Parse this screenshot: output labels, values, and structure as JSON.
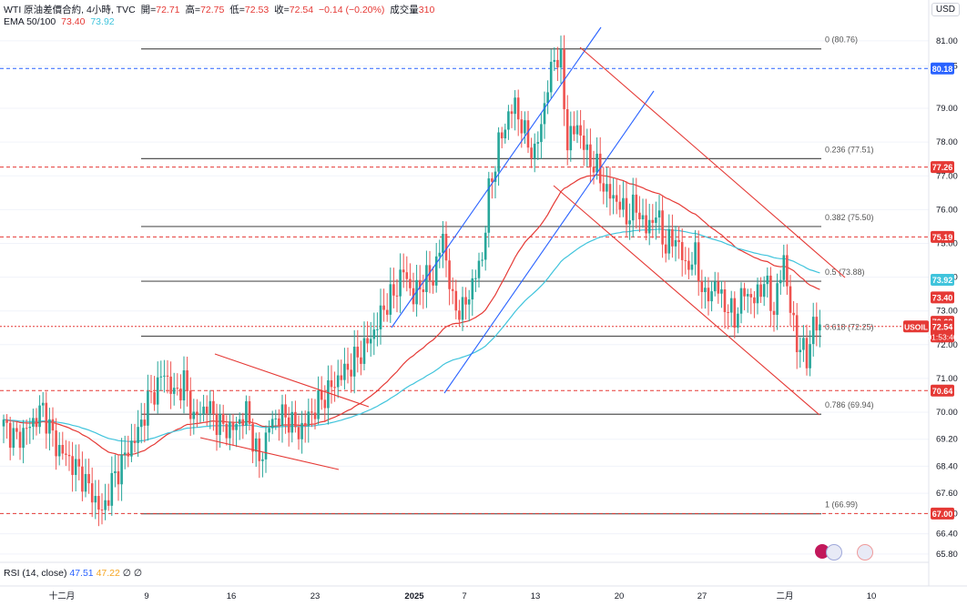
{
  "header": {
    "symbol_line": "WTI 原油差價合約, 4小時, TVC",
    "open_label": "開=",
    "open": "72.71",
    "high_label": "高=",
    "high": "72.75",
    "low_label": "低=",
    "low": "72.53",
    "close_label": "收=",
    "close": "72.54",
    "change": "−0.14 (−0.20%)",
    "volume_label": "成交量",
    "volume": "310",
    "ema_label": "EMA 50/100",
    "ema50": "73.40",
    "ema100": "73.92",
    "currency": "USD"
  },
  "rsi": {
    "label": "RSI (14, close)",
    "v1": "47.51",
    "v2": "47.22",
    "v3": "∅",
    "v4": "∅"
  },
  "chart_data": {
    "type": "candlestick",
    "symbol": "USOIL",
    "timeframe": "4H",
    "y_axis": {
      "min": 65.5,
      "max": 81.4,
      "ticks": [
        "81.00",
        "80.25",
        "79.00",
        "78.00",
        "77.00",
        "76.00",
        "75.00",
        "74.00",
        "73.00",
        "72.00",
        "71.00",
        "70.00",
        "69.20",
        "68.40",
        "67.60",
        "67.00",
        "66.40",
        "65.80"
      ]
    },
    "x_ticks": [
      "十二月",
      "9",
      "16",
      "23",
      "2025",
      "7",
      "13",
      "20",
      "27",
      "二月",
      "10"
    ],
    "fibonacci": [
      {
        "ratio": "0",
        "price": 80.76,
        "label": "0 (80.76)"
      },
      {
        "ratio": "0.236",
        "price": 77.51,
        "label": "0.236 (77.51)"
      },
      {
        "ratio": "0.382",
        "price": 75.5,
        "label": "0.382 (75.50)"
      },
      {
        "ratio": "0.5",
        "price": 73.88,
        "label": "0.5 (73.88)"
      },
      {
        "ratio": "0.618",
        "price": 72.25,
        "label": "0.618 (72.25)"
      },
      {
        "ratio": "0.786",
        "price": 69.94,
        "label": "0.786 (69.94)"
      },
      {
        "ratio": "1",
        "price": 66.99,
        "label": "1 (66.99)"
      }
    ],
    "price_lines": [
      {
        "price": 80.18,
        "label": "80.18",
        "color": "#2962ff",
        "style": "dashed"
      },
      {
        "price": 77.26,
        "label": "77.26",
        "color": "#e53935",
        "style": "dashed"
      },
      {
        "price": 75.19,
        "label": "75.19",
        "color": "#e53935",
        "style": "dashed"
      },
      {
        "price": 72.54,
        "label": "72.54",
        "color": "#e53935",
        "style": "dotted"
      },
      {
        "price": 70.64,
        "label": "70.64",
        "color": "#e53935",
        "style": "dashed"
      },
      {
        "price": 67.0,
        "label": "67.00",
        "color": "#e53935",
        "style": "dashed"
      }
    ],
    "axis_badges": [
      {
        "price": 80.18,
        "text": "80.18",
        "bg": "#2962ff"
      },
      {
        "price": 77.26,
        "text": "77.26",
        "bg": "#e53935"
      },
      {
        "price": 75.19,
        "text": "75.19",
        "bg": "#e53935"
      },
      {
        "price": 73.92,
        "text": "73.92",
        "bg": "#40c4dc"
      },
      {
        "price": 73.4,
        "text": "73.40",
        "bg": "#e53935"
      },
      {
        "price": 72.68,
        "text": "72.68",
        "bg": "#e53935"
      },
      {
        "price": 72.54,
        "text": "72.54",
        "bg": "#e53935",
        "extra": "01:53:40"
      },
      {
        "price": 70.64,
        "text": "70.64",
        "bg": "#e53935"
      },
      {
        "price": 67.0,
        "text": "67.00",
        "bg": "#e53935"
      }
    ],
    "current_price_tag": "USOIL",
    "colors": {
      "up": "#26a69a",
      "down": "#ef5350",
      "ema50": "#e53935",
      "ema100": "#40c4dc",
      "trend_blue": "#2962ff",
      "trend_red": "#e53935",
      "fib": "#555555"
    },
    "price_path": [
      [
        0,
        69.6
      ],
      [
        4,
        69.2
      ],
      [
        8,
        69.6
      ],
      [
        12,
        70.1
      ],
      [
        16,
        69.0
      ],
      [
        20,
        68.6
      ],
      [
        24,
        68.1
      ],
      [
        28,
        67.4
      ],
      [
        30,
        67.0
      ],
      [
        33,
        67.9
      ],
      [
        37,
        68.7
      ],
      [
        41,
        69.4
      ],
      [
        44,
        70.3
      ],
      [
        47,
        70.8
      ],
      [
        49,
        71.2
      ],
      [
        52,
        70.5
      ],
      [
        55,
        70.9
      ],
      [
        58,
        69.8
      ],
      [
        62,
        70.2
      ],
      [
        66,
        69.6
      ],
      [
        70,
        69.5
      ],
      [
        74,
        70.0
      ],
      [
        78,
        68.5
      ],
      [
        81,
        69.6
      ],
      [
        84,
        69.9
      ],
      [
        87,
        69.8
      ],
      [
        90,
        69.4
      ],
      [
        94,
        70.0
      ],
      [
        98,
        70.5
      ],
      [
        102,
        71.0
      ],
      [
        106,
        71.4
      ],
      [
        110,
        71.9
      ],
      [
        113,
        72.4
      ],
      [
        116,
        73.1
      ],
      [
        119,
        73.5
      ],
      [
        122,
        74.2
      ],
      [
        125,
        73.4
      ],
      [
        128,
        73.9
      ],
      [
        131,
        74.0
      ],
      [
        134,
        75.2
      ],
      [
        137,
        73.2
      ],
      [
        140,
        73.0
      ],
      [
        143,
        73.8
      ],
      [
        146,
        74.6
      ],
      [
        148,
        76.5
      ],
      [
        151,
        77.9
      ],
      [
        154,
        78.8
      ],
      [
        156,
        79.1
      ],
      [
        159,
        78.2
      ],
      [
        162,
        77.6
      ],
      [
        164,
        78.6
      ],
      [
        166,
        79.6
      ],
      [
        168,
        80.6
      ],
      [
        170,
        80.3
      ],
      [
        172,
        78.0
      ],
      [
        175,
        78.5
      ],
      [
        178,
        77.6
      ],
      [
        181,
        77.2
      ],
      [
        184,
        76.5
      ],
      [
        187,
        76.3
      ],
      [
        190,
        75.8
      ],
      [
        193,
        76.1
      ],
      [
        196,
        75.4
      ],
      [
        199,
        75.9
      ],
      [
        202,
        74.9
      ],
      [
        205,
        75.2
      ],
      [
        208,
        74.3
      ],
      [
        211,
        74.6
      ],
      [
        214,
        73.3
      ],
      [
        217,
        73.8
      ],
      [
        220,
        73.2
      ],
      [
        223,
        72.8
      ],
      [
        226,
        73.6
      ],
      [
        229,
        73.3
      ],
      [
        232,
        73.9
      ],
      [
        235,
        73.0
      ],
      [
        238,
        74.6
      ],
      [
        240,
        73.0
      ],
      [
        242,
        72.1
      ],
      [
        245,
        71.6
      ],
      [
        247,
        72.6
      ],
      [
        249,
        72.5
      ]
    ]
  }
}
